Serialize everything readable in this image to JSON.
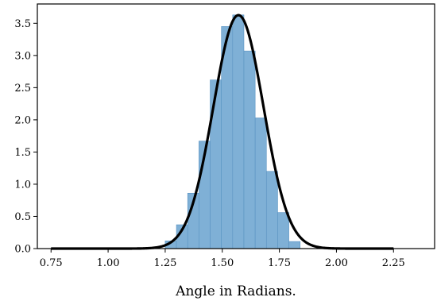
{
  "chart_data": {
    "type": "bar",
    "title": "",
    "xlabel": "Angle in Radians.",
    "ylabel": "",
    "xlim": [
      0.69,
      2.43
    ],
    "ylim": [
      0,
      3.8
    ],
    "x_ticks": [
      0.75,
      1.0,
      1.25,
      1.5,
      1.75,
      2.0,
      2.25
    ],
    "x_tick_labels": [
      "0.75",
      "1.00",
      "1.25",
      "1.50",
      "1.75",
      "2.00",
      "2.25"
    ],
    "y_ticks": [
      0.0,
      0.5,
      1.0,
      1.5,
      2.0,
      2.5,
      3.0,
      3.5
    ],
    "y_tick_labels": [
      "0.0",
      "0.5",
      "1.0",
      "1.5",
      "2.0",
      "2.5",
      "3.0",
      "3.5"
    ],
    "grid": false,
    "histogram": {
      "bin_edges": [
        1.25,
        1.2992,
        1.3485,
        1.3977,
        1.447,
        1.4962,
        1.5455,
        1.5947,
        1.644,
        1.6932,
        1.7425,
        1.7917,
        1.841
      ],
      "values": [
        0.12,
        0.37,
        0.86,
        1.67,
        2.62,
        3.45,
        3.63,
        3.07,
        2.03,
        1.2,
        0.56,
        0.11
      ],
      "color": "#7fb0d6",
      "edge_color": "#5a93c2"
    },
    "curve": {
      "type": "normal_pdf",
      "mean": 1.5708,
      "std": 0.11,
      "x_range": [
        0.75,
        2.25
      ],
      "color": "#000000"
    }
  }
}
